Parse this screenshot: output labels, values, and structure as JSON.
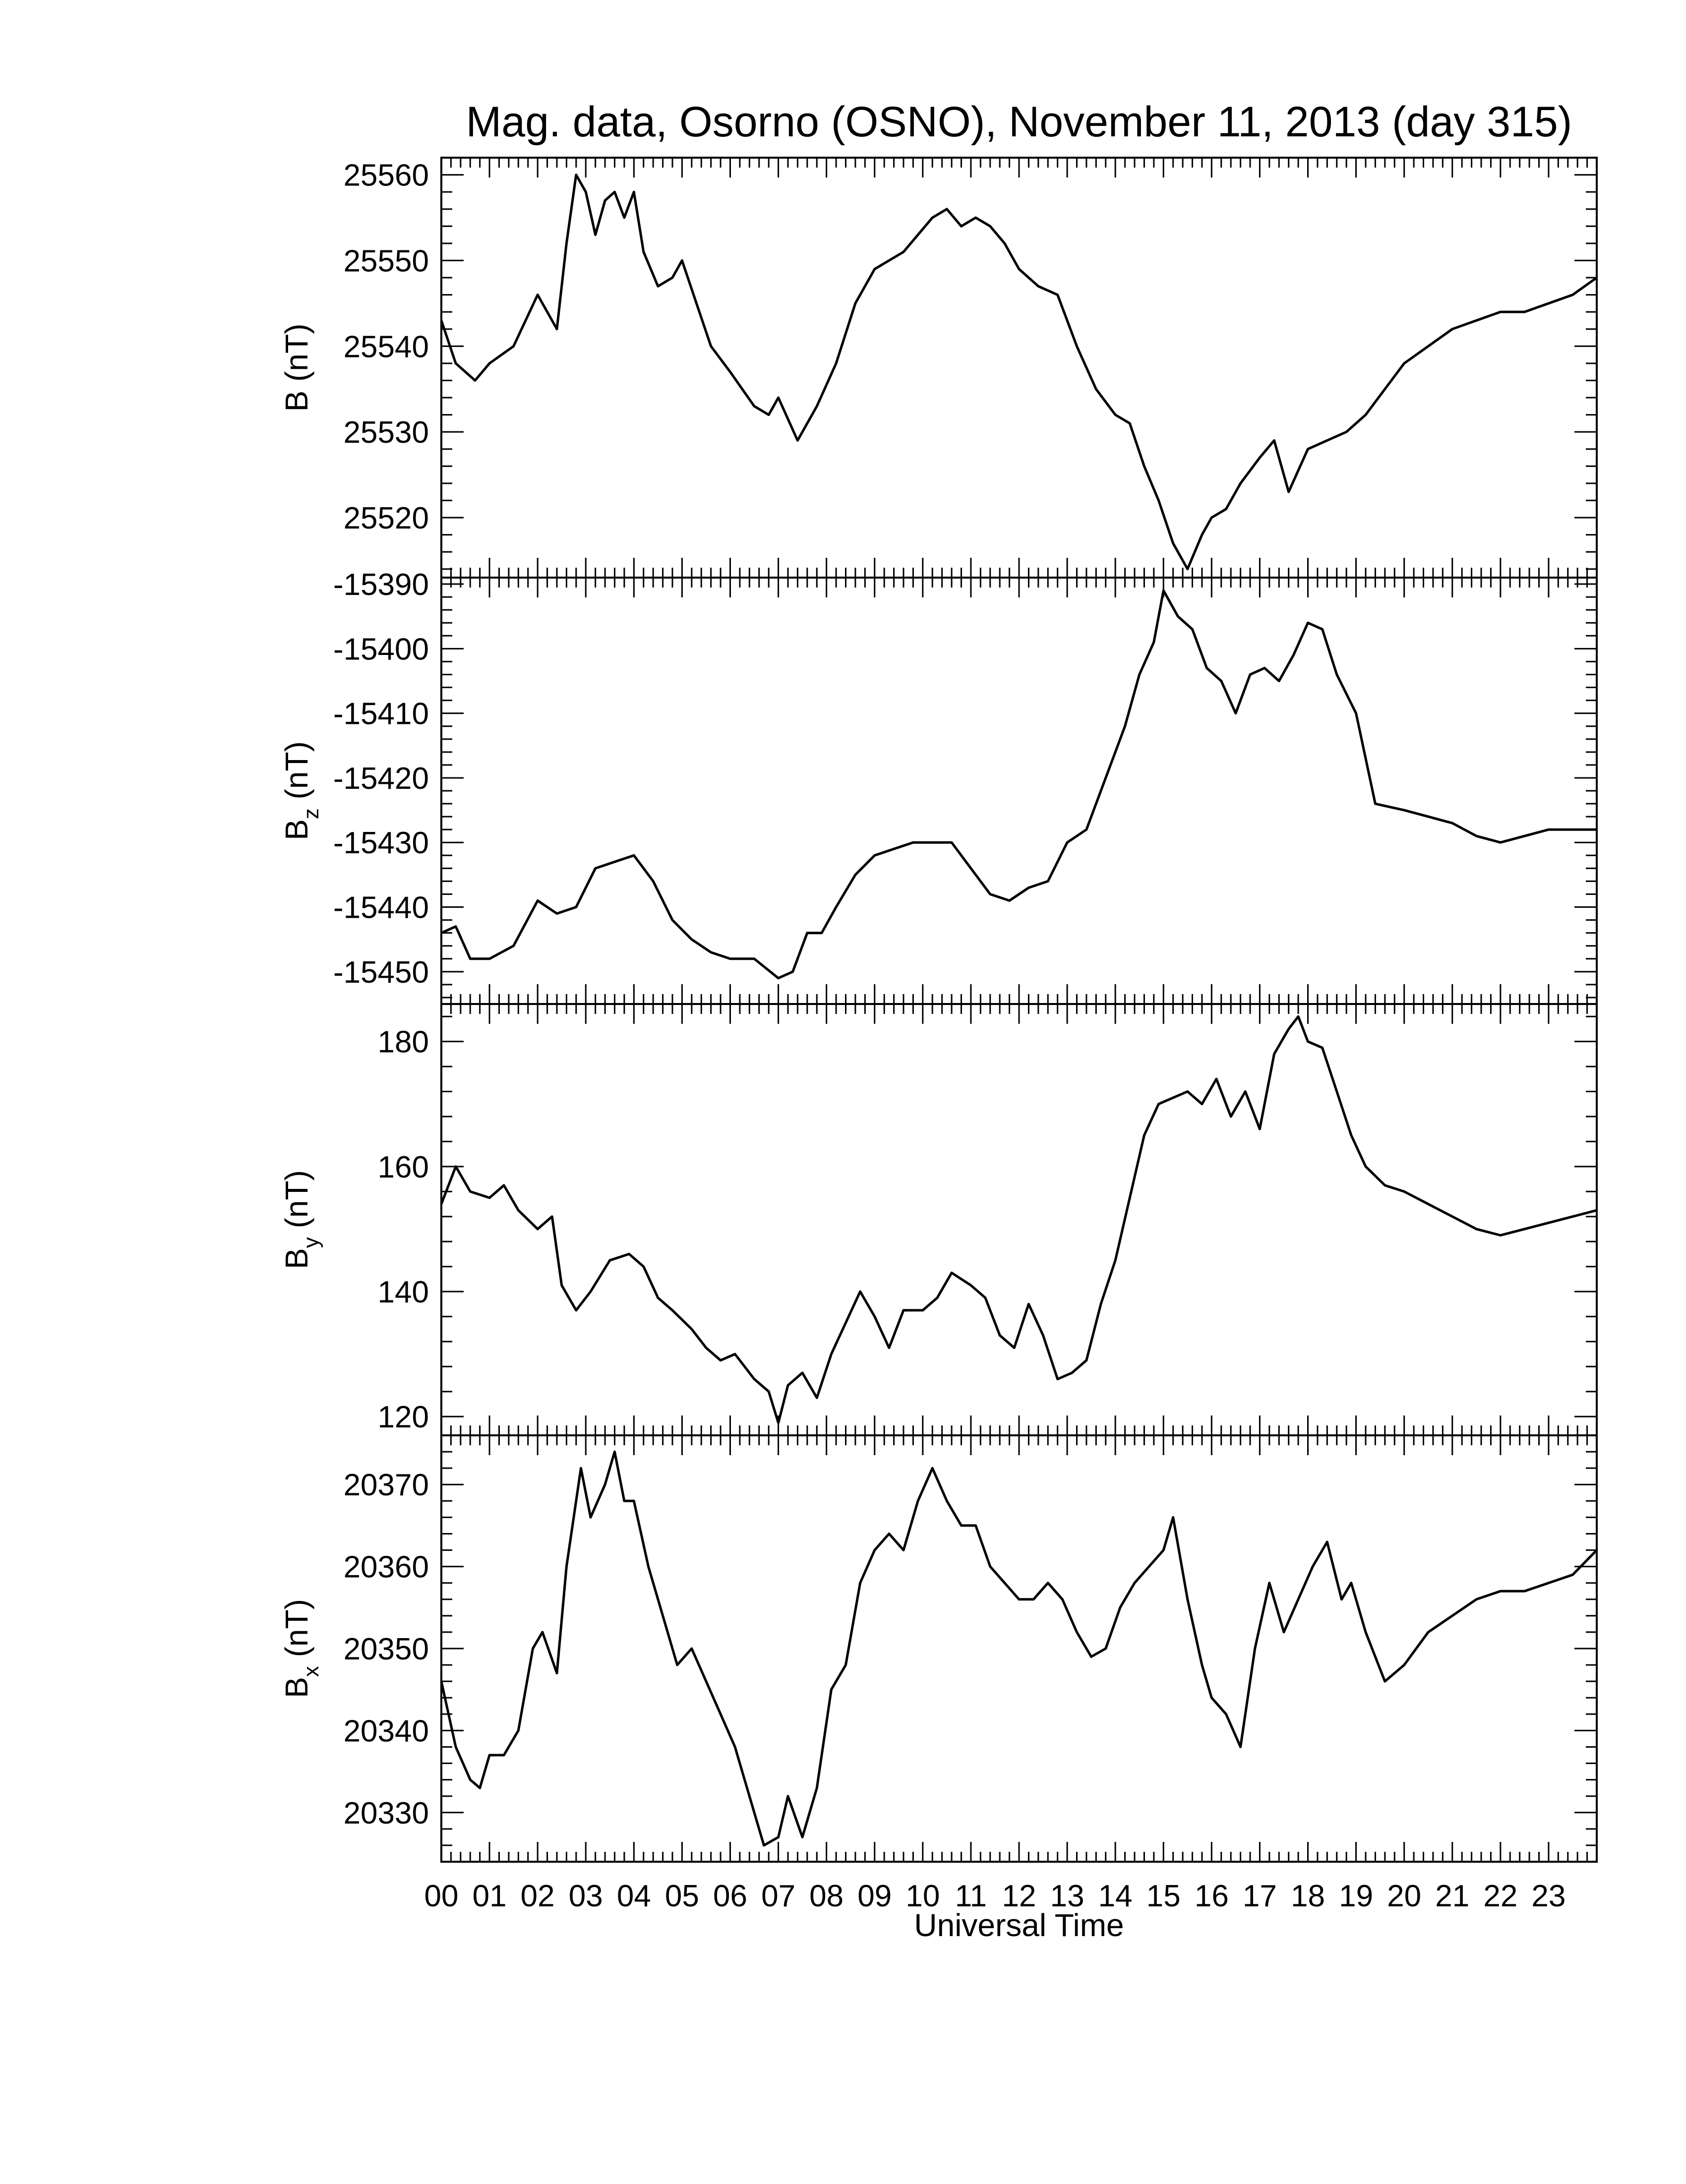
{
  "chart_data": {
    "type": "line",
    "title": "Mag. data, Osorno (OSNO), November 11, 2013 (day 315)",
    "xlabel": "Universal Time",
    "x_unit": "hours UT",
    "xlim": [
      0,
      24
    ],
    "x_tick_labels": [
      "00",
      "01",
      "02",
      "03",
      "04",
      "05",
      "06",
      "07",
      "08",
      "09",
      "10",
      "11",
      "12",
      "13",
      "14",
      "15",
      "16",
      "17",
      "18",
      "19",
      "20",
      "21",
      "22",
      "23"
    ],
    "line_color": "#000000",
    "panels": [
      {
        "id": "B",
        "ylabel_main": "B",
        "ylabel_sub": "",
        "ylabel_unit": "(nT)",
        "ylim": [
          25513,
          25562
        ],
        "yticks": [
          25520,
          25530,
          25540,
          25550,
          25560
        ],
        "series": [
          {
            "x": [
              0.0,
              0.3,
              0.7,
              1.0,
              1.5,
              2.0,
              2.4,
              2.6,
              2.8,
              3.0,
              3.2,
              3.4,
              3.6,
              3.8,
              4.0,
              4.2,
              4.5,
              4.8,
              5.0,
              5.3,
              5.6,
              6.0,
              6.5,
              6.8,
              7.0,
              7.4,
              7.8,
              8.2,
              8.6,
              9.0,
              9.3,
              9.6,
              9.9,
              10.2,
              10.5,
              10.8,
              11.1,
              11.4,
              11.7,
              12.0,
              12.4,
              12.8,
              13.2,
              13.6,
              14.0,
              14.3,
              14.6,
              14.9,
              15.2,
              15.5,
              15.8,
              16.0,
              16.3,
              16.6,
              17.0,
              17.3,
              17.6,
              18.0,
              18.4,
              18.8,
              19.2,
              19.6,
              20.0,
              20.5,
              21.0,
              21.5,
              22.0,
              22.5,
              23.0,
              23.5,
              24.0
            ],
            "y": [
              25543,
              25538,
              25536,
              25538,
              25540,
              25546,
              25542,
              25552,
              25560,
              25558,
              25553,
              25557,
              25558,
              25555,
              25558,
              25551,
              25547,
              25548,
              25550,
              25545,
              25540,
              25537,
              25533,
              25532,
              25534,
              25529,
              25533,
              25538,
              25545,
              25549,
              25550,
              25551,
              25553,
              25555,
              25556,
              25554,
              25555,
              25554,
              25552,
              25549,
              25547,
              25546,
              25540,
              25535,
              25532,
              25531,
              25526,
              25522,
              25517,
              25514,
              25518,
              25520,
              25521,
              25524,
              25527,
              25529,
              25523,
              25528,
              25529,
              25530,
              25532,
              25535,
              25538,
              25540,
              25542,
              25543,
              25544,
              25544,
              25545,
              25546,
              25548
            ]
          }
        ]
      },
      {
        "id": "Bz",
        "ylabel_main": "B",
        "ylabel_sub": "z",
        "ylabel_unit": "(nT)",
        "ylim": [
          -15455,
          -15389
        ],
        "yticks": [
          -15450,
          -15440,
          -15430,
          -15420,
          -15410,
          -15400,
          -15390
        ],
        "series": [
          {
            "x": [
              0.0,
              0.3,
              0.6,
              1.0,
              1.5,
              2.0,
              2.4,
              2.8,
              3.2,
              3.6,
              4.0,
              4.4,
              4.8,
              5.2,
              5.6,
              6.0,
              6.5,
              7.0,
              7.3,
              7.6,
              7.9,
              8.2,
              8.6,
              9.0,
              9.4,
              9.8,
              10.2,
              10.6,
              11.0,
              11.4,
              11.8,
              12.2,
              12.6,
              13.0,
              13.4,
              13.8,
              14.2,
              14.5,
              14.8,
              15.0,
              15.3,
              15.6,
              15.9,
              16.2,
              16.5,
              16.8,
              17.1,
              17.4,
              17.7,
              18.0,
              18.3,
              18.6,
              19.0,
              19.4,
              20.0,
              20.5,
              21.0,
              21.5,
              22.0,
              22.5,
              23.0,
              23.5,
              24.0
            ],
            "y": [
              -15444,
              -15443,
              -15448,
              -15448,
              -15446,
              -15439,
              -15441,
              -15440,
              -15434,
              -15433,
              -15432,
              -15436,
              -15442,
              -15445,
              -15447,
              -15448,
              -15448,
              -15451,
              -15450,
              -15444,
              -15444,
              -15440,
              -15435,
              -15432,
              -15431,
              -15430,
              -15430,
              -15430,
              -15434,
              -15438,
              -15439,
              -15437,
              -15436,
              -15430,
              -15428,
              -15420,
              -15412,
              -15404,
              -15399,
              -15391,
              -15395,
              -15397,
              -15403,
              -15405,
              -15410,
              -15404,
              -15403,
              -15405,
              -15401,
              -15396,
              -15397,
              -15404,
              -15410,
              -15424,
              -15425,
              -15426,
              -15427,
              -15429,
              -15430,
              -15429,
              -15428,
              -15428,
              -15428
            ]
          }
        ]
      },
      {
        "id": "By",
        "ylabel_main": "B",
        "ylabel_sub": "y",
        "ylabel_unit": "(nT)",
        "ylim": [
          117,
          186
        ],
        "yticks": [
          120,
          140,
          160,
          180
        ],
        "series": [
          {
            "x": [
              0.0,
              0.3,
              0.6,
              1.0,
              1.3,
              1.6,
              2.0,
              2.3,
              2.5,
              2.8,
              3.1,
              3.5,
              3.9,
              4.2,
              4.5,
              4.8,
              5.2,
              5.5,
              5.8,
              6.1,
              6.5,
              6.8,
              7.0,
              7.2,
              7.5,
              7.8,
              8.1,
              8.4,
              8.7,
              9.0,
              9.3,
              9.6,
              10.0,
              10.3,
              10.6,
              11.0,
              11.3,
              11.6,
              11.9,
              12.2,
              12.5,
              12.8,
              13.1,
              13.4,
              13.7,
              14.0,
              14.3,
              14.6,
              14.9,
              15.2,
              15.5,
              15.8,
              16.1,
              16.4,
              16.7,
              17.0,
              17.3,
              17.6,
              17.8,
              18.0,
              18.3,
              18.6,
              18.9,
              19.2,
              19.6,
              20.0,
              20.5,
              21.0,
              21.5,
              22.0,
              22.5,
              23.0,
              23.5,
              24.0
            ],
            "y": [
              154,
              160,
              156,
              155,
              157,
              153,
              150,
              152,
              141,
              137,
              140,
              145,
              146,
              144,
              139,
              137,
              134,
              131,
              129,
              130,
              126,
              124,
              119,
              125,
              127,
              123,
              130,
              135,
              140,
              136,
              131,
              137,
              137,
              139,
              143,
              141,
              139,
              133,
              131,
              138,
              133,
              126,
              127,
              129,
              138,
              145,
              155,
              165,
              170,
              171,
              172,
              170,
              174,
              168,
              172,
              166,
              178,
              182,
              184,
              180,
              179,
              172,
              165,
              160,
              157,
              156,
              154,
              152,
              150,
              149,
              150,
              151,
              152,
              153
            ]
          }
        ]
      },
      {
        "id": "Bx",
        "ylabel_main": "B",
        "ylabel_sub": "x",
        "ylabel_unit": "(nT)",
        "ylim": [
          20324,
          20376
        ],
        "yticks": [
          20330,
          20340,
          20350,
          20360,
          20370
        ],
        "series": [
          {
            "x": [
              0.0,
              0.3,
              0.6,
              0.8,
              1.0,
              1.3,
              1.6,
              1.9,
              2.1,
              2.4,
              2.6,
              2.9,
              3.1,
              3.4,
              3.6,
              3.8,
              4.0,
              4.3,
              4.6,
              4.9,
              5.2,
              5.5,
              5.8,
              6.1,
              6.4,
              6.7,
              7.0,
              7.2,
              7.5,
              7.8,
              8.1,
              8.4,
              8.7,
              9.0,
              9.3,
              9.6,
              9.9,
              10.2,
              10.5,
              10.8,
              11.1,
              11.4,
              11.7,
              12.0,
              12.3,
              12.6,
              12.9,
              13.2,
              13.5,
              13.8,
              14.1,
              14.4,
              14.7,
              15.0,
              15.2,
              15.5,
              15.8,
              16.0,
              16.3,
              16.6,
              16.9,
              17.2,
              17.5,
              17.8,
              18.1,
              18.4,
              18.7,
              18.9,
              19.2,
              19.6,
              20.0,
              20.5,
              21.0,
              21.5,
              22.0,
              22.5,
              23.0,
              23.5,
              24.0
            ],
            "y": [
              20346,
              20338,
              20334,
              20333,
              20337,
              20337,
              20340,
              20350,
              20352,
              20347,
              20360,
              20372,
              20366,
              20370,
              20374,
              20368,
              20368,
              20360,
              20354,
              20348,
              20350,
              20346,
              20342,
              20338,
              20332,
              20326,
              20327,
              20332,
              20327,
              20333,
              20345,
              20348,
              20358,
              20362,
              20364,
              20362,
              20368,
              20372,
              20368,
              20365,
              20365,
              20360,
              20358,
              20356,
              20356,
              20358,
              20356,
              20352,
              20349,
              20350,
              20355,
              20358,
              20360,
              20362,
              20366,
              20356,
              20348,
              20344,
              20342,
              20338,
              20350,
              20358,
              20352,
              20356,
              20360,
              20363,
              20356,
              20358,
              20352,
              20346,
              20348,
              20352,
              20354,
              20356,
              20357,
              20357,
              20358,
              20359,
              20362
            ]
          }
        ]
      }
    ]
  }
}
